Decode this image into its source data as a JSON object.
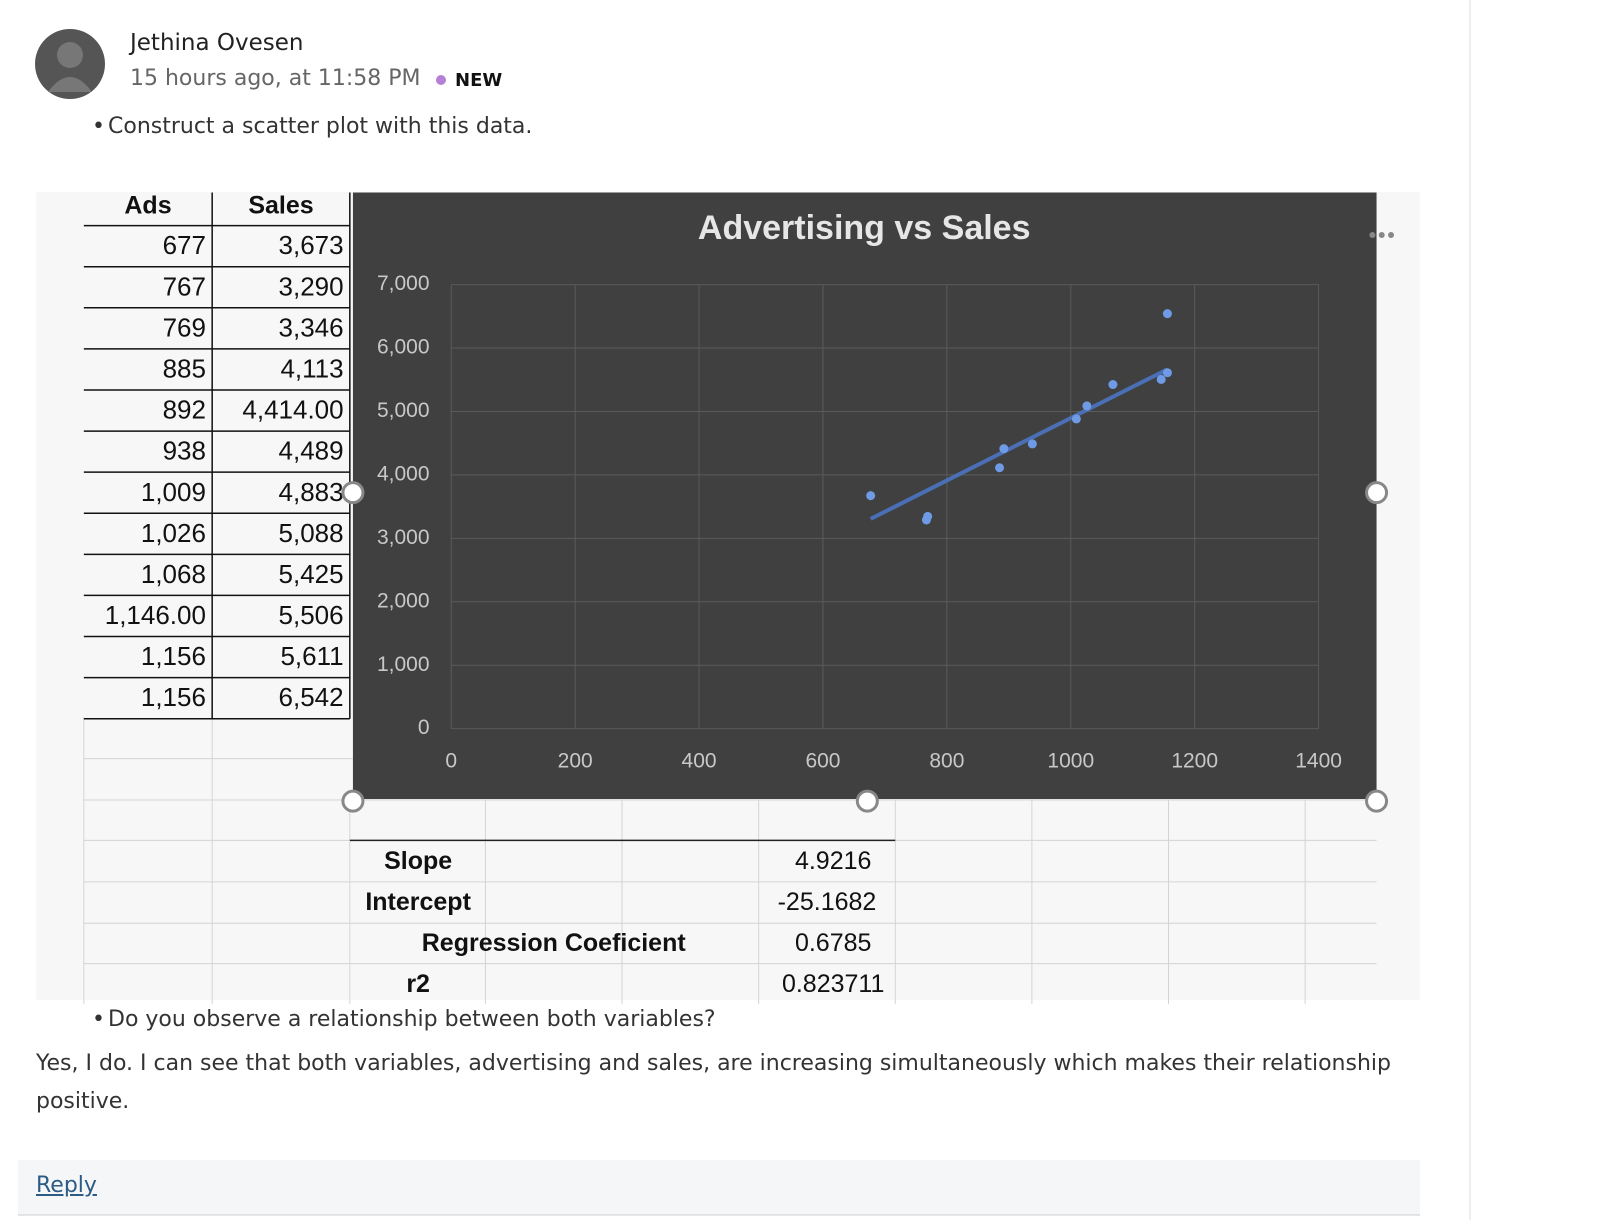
{
  "author": {
    "name": "Jethina Ovesen",
    "time": "15 hours ago, at 11:58 PM",
    "badge": "NEW"
  },
  "body": {
    "bullet1": "Construct a scatter plot with this data.",
    "bullet2": "Do you observe a relationship between both variables?",
    "answer": "Yes, I do. I can see that both variables, advertising and sales, are increasing simultaneously which makes their relationship positive."
  },
  "sheet": {
    "headers": [
      "Ads",
      "Sales"
    ],
    "rows": [
      [
        "677",
        "3,673"
      ],
      [
        "767",
        "3,290"
      ],
      [
        "769",
        "3,346"
      ],
      [
        "885",
        "4,113"
      ],
      [
        "892",
        "4,414.00"
      ],
      [
        "938",
        "4,489"
      ],
      [
        "1,009",
        "4,883"
      ],
      [
        "1,026",
        "5,088"
      ],
      [
        "1,068",
        "5,425"
      ],
      [
        "1,146.00",
        "5,506"
      ],
      [
        "1,156",
        "5,611"
      ],
      [
        "1,156",
        "6,542"
      ]
    ],
    "stats": [
      {
        "label": "Slope",
        "value": 4.9216
      },
      {
        "label": "Intercept",
        "value": -25.1682
      },
      {
        "label": "Regression Coeficient",
        "value": 0.6785
      },
      {
        "label": "r2",
        "value": 0.823711
      }
    ]
  },
  "chart_data": {
    "type": "scatter",
    "title": "Advertising vs Sales",
    "color": "#6f9be6",
    "trendline_color": "#4a6fb5",
    "trendline": true,
    "x": [
      677,
      767,
      769,
      885,
      892,
      938,
      1009,
      1026,
      1068,
      1146,
      1156,
      1156
    ],
    "values": [
      3673,
      3290,
      3346,
      4113,
      4414,
      4489,
      4883,
      5088,
      5425,
      5506,
      5611,
      6542
    ],
    "xlim": [
      0,
      1400
    ],
    "xticks": [
      0,
      200,
      400,
      600,
      800,
      1000,
      1200,
      1400
    ],
    "ylim": [
      0,
      7000
    ],
    "yticks": [
      0,
      {
        "value": 1000,
        "label": "1,000"
      },
      {
        "value": 2000,
        "label": "2,000"
      },
      {
        "value": 3000,
        "label": "3,000"
      },
      {
        "value": 4000,
        "label": "4,000"
      },
      {
        "value": 5000,
        "label": "5,000"
      },
      {
        "value": 6000,
        "label": "6,000"
      },
      {
        "value": 7000,
        "label": "7,000"
      }
    ],
    "grid": true
  },
  "actions": {
    "reply": "Reply"
  }
}
